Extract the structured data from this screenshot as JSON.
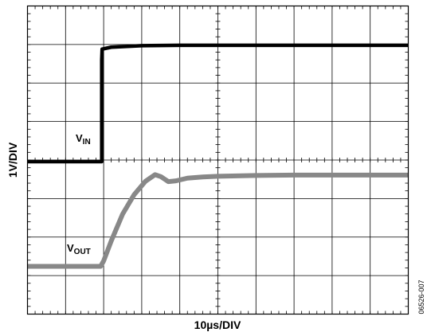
{
  "chart_data": {
    "type": "line",
    "title": "",
    "xlabel": "10µs/DIV",
    "ylabel": "1V/DIV",
    "x_divisions": 10,
    "y_divisions": 8,
    "grid": true,
    "figure_id": "06526-007",
    "series": [
      {
        "name": "VIN",
        "label_main": "V",
        "label_sub": "IN",
        "color": "#000000",
        "x": [
          0,
          1.95,
          1.95,
          1.96,
          2.2,
          3.0,
          4.0,
          6.0,
          8.0,
          10.0
        ],
        "y": [
          -0.04,
          -0.04,
          2.6,
          2.88,
          2.93,
          2.97,
          2.98,
          2.98,
          2.98,
          2.98
        ]
      },
      {
        "name": "VOUT",
        "label_main": "V",
        "label_sub": "OUT",
        "color": "#888888",
        "x": [
          0,
          1.92,
          2.0,
          2.2,
          2.5,
          2.8,
          3.1,
          3.35,
          3.5,
          3.7,
          3.9,
          4.2,
          4.6,
          5.0,
          6.0,
          7.0,
          8.0,
          9.0,
          10.0
        ],
        "y": [
          -2.76,
          -2.76,
          -2.62,
          -2.1,
          -1.4,
          -0.9,
          -0.55,
          -0.38,
          -0.43,
          -0.56,
          -0.54,
          -0.47,
          -0.44,
          -0.42,
          -0.4,
          -0.39,
          -0.39,
          -0.39,
          -0.39
        ]
      }
    ]
  }
}
